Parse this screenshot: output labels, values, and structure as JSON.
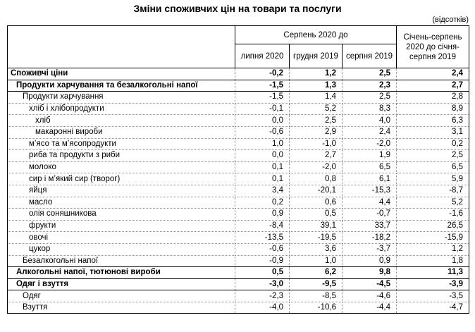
{
  "page": {
    "title": "Зміни споживчих цін на товари та послуги",
    "unit_note": "(відсотків)"
  },
  "chart_data": {
    "type": "table",
    "title": "Зміни споживчих цін на товари та послуги",
    "unit": "відсотків",
    "columns": {
      "group_header": "Серпень 2020 до",
      "subcolumns": [
        "липня 2020",
        "грудня 2019",
        "серпня 2019"
      ],
      "ytd_column": "Січень-серпень 2020 до січня-серпня 2019"
    },
    "rows": [
      {
        "label": "Споживчі ціни",
        "indent": 0,
        "bold": true,
        "values": [
          "-0,2",
          "1,2",
          "2,5",
          "2,4"
        ]
      },
      {
        "label": "Продукти харчування та безалкогольні напої",
        "indent": 1,
        "bold": true,
        "values": [
          "-1,5",
          "1,3",
          "2,3",
          "2,7"
        ]
      },
      {
        "label": "Продукти харчування",
        "indent": 2,
        "bold": false,
        "values": [
          "-1,5",
          "1,4",
          "2,5",
          "2,8"
        ]
      },
      {
        "label": "хліб і хлібопродукти",
        "indent": 3,
        "bold": false,
        "values": [
          "-0,1",
          "5,2",
          "8,3",
          "8,9"
        ]
      },
      {
        "label": "хліб",
        "indent": 4,
        "bold": false,
        "values": [
          "0,0",
          "2,5",
          "4,0",
          "6,3"
        ]
      },
      {
        "label": "макаронні вироби",
        "indent": 4,
        "bold": false,
        "values": [
          "-0,6",
          "2,9",
          "2,4",
          "3,1"
        ]
      },
      {
        "label": "м’ясо та м’ясопродукти",
        "indent": 3,
        "bold": false,
        "values": [
          "1,0",
          "-1,0",
          "-2,0",
          "0,2"
        ]
      },
      {
        "label": "риба та продукти з риби",
        "indent": 3,
        "bold": false,
        "values": [
          "0,0",
          "2,7",
          "1,9",
          "2,5"
        ]
      },
      {
        "label": "молоко",
        "indent": 3,
        "bold": false,
        "values": [
          "0,1",
          "-2,0",
          "6,5",
          "6,5"
        ]
      },
      {
        "label": "сир і м’який сир (творог)",
        "indent": 3,
        "bold": false,
        "values": [
          "0,1",
          "0,8",
          "6,1",
          "5,9"
        ]
      },
      {
        "label": "яйця",
        "indent": 3,
        "bold": false,
        "values": [
          "3,4",
          "-20,1",
          "-15,3",
          "-8,7"
        ]
      },
      {
        "label": "масло",
        "indent": 3,
        "bold": false,
        "values": [
          "0,2",
          "0,6",
          "4,4",
          "5,2"
        ]
      },
      {
        "label": "олія соняшникова",
        "indent": 3,
        "bold": false,
        "values": [
          "0,9",
          "0,5",
          "-0,7",
          "-1,6"
        ]
      },
      {
        "label": "фрукти",
        "indent": 3,
        "bold": false,
        "values": [
          "-8,4",
          "39,1",
          "33,7",
          "26,5"
        ]
      },
      {
        "label": "овочі",
        "indent": 3,
        "bold": false,
        "values": [
          "-13,5",
          "-19,5",
          "-18,2",
          "-15,9"
        ]
      },
      {
        "label": "цукор",
        "indent": 3,
        "bold": false,
        "values": [
          "-0,6",
          "3,6",
          "-3,7",
          "1,2"
        ]
      },
      {
        "label": "Безалкогольні напої",
        "indent": 2,
        "bold": false,
        "values": [
          "-0,9",
          "1,0",
          "0,9",
          "1,8"
        ]
      },
      {
        "label": "Алкогольні напої, тютюнові вироби",
        "indent": 1,
        "bold": true,
        "values": [
          "0,5",
          "6,2",
          "9,8",
          "11,3"
        ]
      },
      {
        "label": "Одяг і взуття",
        "indent": 1,
        "bold": true,
        "values": [
          "-3,0",
          "-9,5",
          "-4,5",
          "-3,9"
        ]
      },
      {
        "label": "Одяг",
        "indent": 2,
        "bold": false,
        "values": [
          "-2,3",
          "-8,5",
          "-4,6",
          "-3,5"
        ]
      },
      {
        "label": "Взуття",
        "indent": 2,
        "bold": false,
        "values": [
          "-4,0",
          "-10,6",
          "-4,4",
          "-4,7"
        ]
      }
    ]
  }
}
